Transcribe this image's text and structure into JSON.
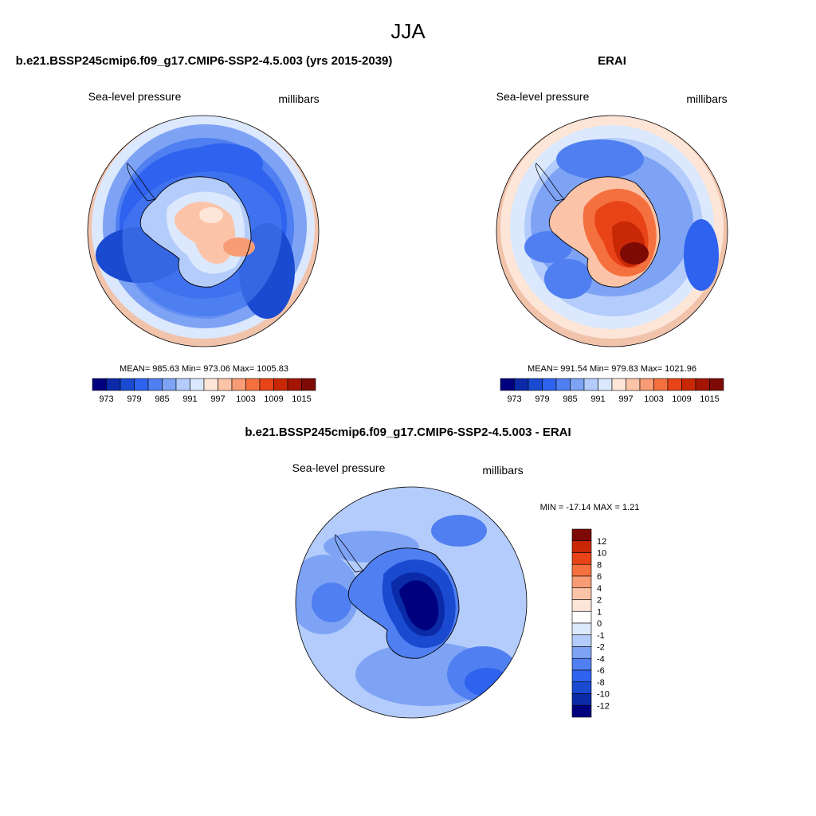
{
  "page_title": "JJA",
  "panels": {
    "model": {
      "title": "b.e21.BSSP245cmip6.f09_g17.CMIP6-SSP2-4.5.003 (yrs 2015-2039)",
      "left_label": "Sea-level pressure",
      "right_label": "millibars",
      "stats": "MEAN= 985.63  Min= 973.06  Max= 1005.83",
      "mean": 985.63,
      "min": 973.06,
      "max": 1005.83
    },
    "obs": {
      "title": "ERAI",
      "left_label": "Sea-level pressure",
      "right_label": "millibars",
      "stats": "MEAN= 991.54  Min= 979.83  Max= 1021.96",
      "mean": 991.54,
      "min": 979.83,
      "max": 1021.96
    },
    "diff": {
      "title": "b.e21.BSSP245cmip6.f09_g17.CMIP6-SSP2-4.5.003 - ERAI",
      "left_label": "Sea-level pressure",
      "right_label": "millibars",
      "stats": "MIN = -17.14 MAX =   1.21",
      "min": -17.14,
      "max": 1.21
    }
  },
  "colorbar_abs": {
    "colors": [
      "#00007f",
      "#0a2aa8",
      "#1a4ad0",
      "#2f62ee",
      "#4f7ff0",
      "#7ea3f5",
      "#b3ccfb",
      "#dbe8fd",
      "#fde6d8",
      "#fbc4a8",
      "#f89c75",
      "#f5703f",
      "#e84418",
      "#c82805",
      "#a31505",
      "#7d0a05"
    ],
    "labels": [
      "973",
      "979",
      "985",
      "991",
      "997",
      "1003",
      "1009",
      "1015"
    ]
  },
  "colorbar_diff": {
    "colors": [
      "#7d0a05",
      "#c82805",
      "#e84418",
      "#f5703f",
      "#f89c75",
      "#fbc4a8",
      "#fde6d8",
      "#ffffff",
      "#dbe8fd",
      "#b3ccfb",
      "#7ea3f5",
      "#4f7ff0",
      "#2f62ee",
      "#1a4ad0",
      "#0a2aa8",
      "#00007f"
    ],
    "labels": [
      "12",
      "10",
      "8",
      "6",
      "4",
      "2",
      "1",
      "0",
      "-1",
      "-2",
      "-4",
      "-6",
      "-8",
      "-10",
      "-12"
    ]
  }
}
